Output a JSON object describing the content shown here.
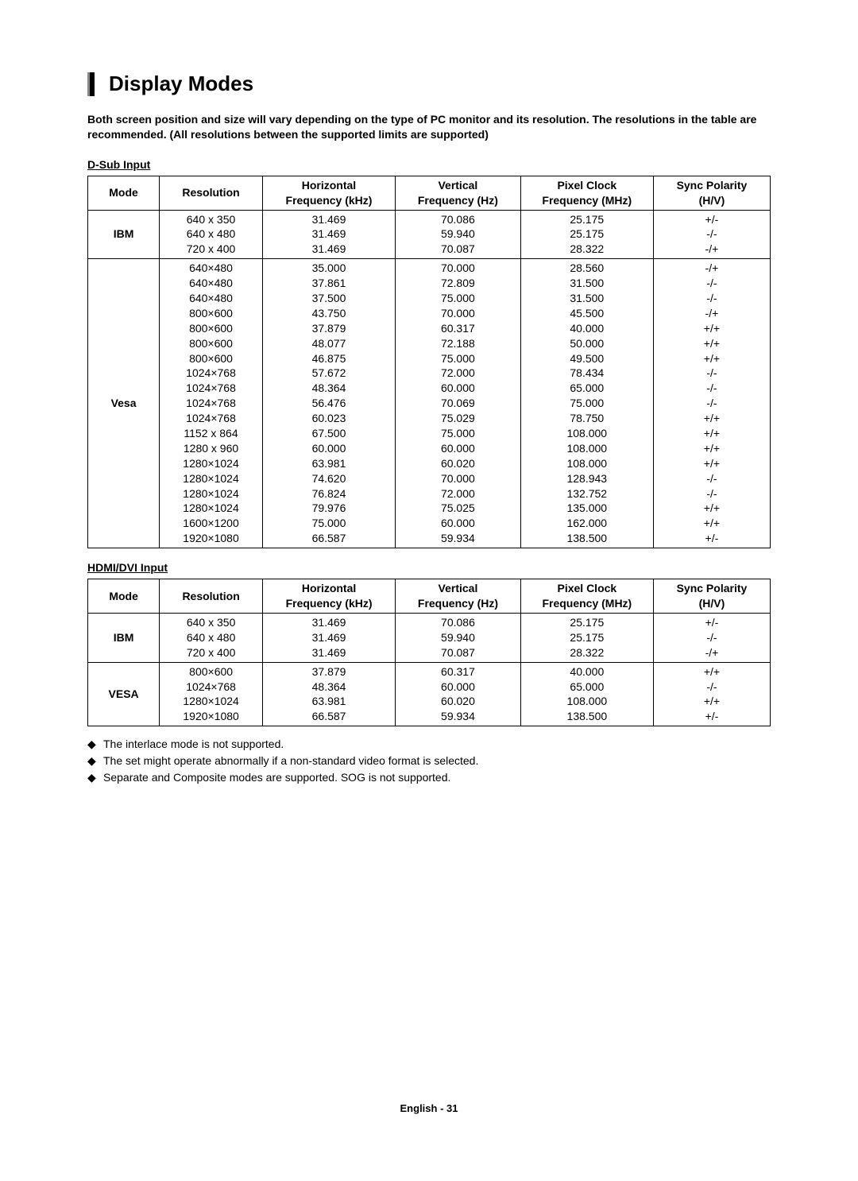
{
  "title": "Display Modes",
  "intro": "Both screen position and size will vary depending on the type of PC monitor and its resolution. The resolutions in the table are recommended. (All resolutions between the supported limits are supported)",
  "table_headers": {
    "mode": "Mode",
    "resolution": "Resolution",
    "hfreq_l1": "Horizontal",
    "hfreq_l2": "Frequency (kHz)",
    "vfreq_l1": "Vertical",
    "vfreq_l2": "Frequency (Hz)",
    "pclk_l1": "Pixel Clock",
    "pclk_l2": "Frequency (MHz)",
    "sync_l1": "Sync Polarity",
    "sync_l2": "(H/V)"
  },
  "dsub": {
    "heading": "D-Sub Input",
    "groups": [
      {
        "mode": "IBM",
        "rows": [
          {
            "res": "640 x 350",
            "h": "31.469",
            "v": "70.086",
            "p": "25.175",
            "s": "+/-"
          },
          {
            "res": "640 x 480",
            "h": "31.469",
            "v": "59.940",
            "p": "25.175",
            "s": "-/-"
          },
          {
            "res": "720 x 400",
            "h": "31.469",
            "v": "70.087",
            "p": "28.322",
            "s": "-/+"
          }
        ]
      },
      {
        "mode": "Vesa",
        "rows": [
          {
            "res": "640×480",
            "h": "35.000",
            "v": "70.000",
            "p": "28.560",
            "s": "-/+"
          },
          {
            "res": "640×480",
            "h": "37.861",
            "v": "72.809",
            "p": "31.500",
            "s": "-/-"
          },
          {
            "res": "640×480",
            "h": "37.500",
            "v": "75.000",
            "p": "31.500",
            "s": "-/-"
          },
          {
            "res": "800×600",
            "h": "43.750",
            "v": "70.000",
            "p": "45.500",
            "s": "-/+"
          },
          {
            "res": "800×600",
            "h": "37.879",
            "v": "60.317",
            "p": "40.000",
            "s": "+/+"
          },
          {
            "res": "800×600",
            "h": "48.077",
            "v": "72.188",
            "p": "50.000",
            "s": "+/+"
          },
          {
            "res": "800×600",
            "h": "46.875",
            "v": "75.000",
            "p": "49.500",
            "s": "+/+"
          },
          {
            "res": "1024×768",
            "h": "57.672",
            "v": "72.000",
            "p": "78.434",
            "s": "-/-"
          },
          {
            "res": "1024×768",
            "h": "48.364",
            "v": "60.000",
            "p": "65.000",
            "s": "-/-"
          },
          {
            "res": "1024×768",
            "h": "56.476",
            "v": "70.069",
            "p": "75.000",
            "s": "-/-"
          },
          {
            "res": "1024×768",
            "h": "60.023",
            "v": "75.029",
            "p": "78.750",
            "s": "+/+"
          },
          {
            "res": "1152 x 864",
            "h": "67.500",
            "v": "75.000",
            "p": "108.000",
            "s": "+/+"
          },
          {
            "res": "1280 x 960",
            "h": "60.000",
            "v": "60.000",
            "p": "108.000",
            "s": "+/+"
          },
          {
            "res": "1280×1024",
            "h": "63.981",
            "v": "60.020",
            "p": "108.000",
            "s": "+/+"
          },
          {
            "res": "1280×1024",
            "h": "74.620",
            "v": "70.000",
            "p": "128.943",
            "s": "-/-"
          },
          {
            "res": "1280×1024",
            "h": "76.824",
            "v": "72.000",
            "p": "132.752",
            "s": "-/-"
          },
          {
            "res": "1280×1024",
            "h": "79.976",
            "v": "75.025",
            "p": "135.000",
            "s": "+/+"
          },
          {
            "res": "1600×1200",
            "h": "75.000",
            "v": "60.000",
            "p": "162.000",
            "s": "+/+"
          },
          {
            "res": "1920×1080",
            "h": "66.587",
            "v": "59.934",
            "p": "138.500",
            "s": "+/-"
          }
        ]
      }
    ]
  },
  "hdmi": {
    "heading": "HDMI/DVI Input",
    "groups": [
      {
        "mode": "IBM",
        "rows": [
          {
            "res": "640 x 350",
            "h": "31.469",
            "v": "70.086",
            "p": "25.175",
            "s": "+/-"
          },
          {
            "res": "640 x 480",
            "h": "31.469",
            "v": "59.940",
            "p": "25.175",
            "s": "-/-"
          },
          {
            "res": "720 x 400",
            "h": "31.469",
            "v": "70.087",
            "p": "28.322",
            "s": "-/+"
          }
        ]
      },
      {
        "mode": "VESA",
        "rows": [
          {
            "res": "800×600",
            "h": "37.879",
            "v": "60.317",
            "p": "40.000",
            "s": "+/+"
          },
          {
            "res": "1024×768",
            "h": "48.364",
            "v": "60.000",
            "p": "65.000",
            "s": "-/-"
          },
          {
            "res": "1280×1024",
            "h": "63.981",
            "v": "60.020",
            "p": "108.000",
            "s": "+/+"
          },
          {
            "res": "1920×1080",
            "h": "66.587",
            "v": "59.934",
            "p": "138.500",
            "s": "+/-"
          }
        ]
      }
    ]
  },
  "notes": [
    "The interlace mode is not supported.",
    "The set might operate abnormally if a non-standard video format is selected.",
    "Separate and Composite modes are supported. SOG is not supported."
  ],
  "footer": "English - 31"
}
